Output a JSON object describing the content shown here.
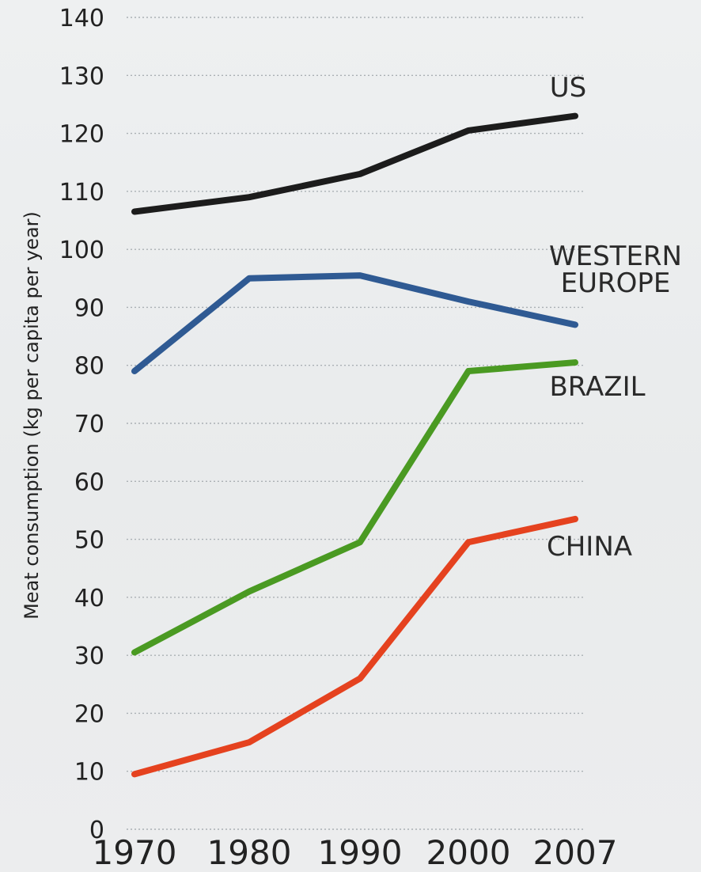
{
  "chart_data": {
    "type": "line",
    "title": "",
    "xlabel": "",
    "ylabel": "Meat consumption (kg per capita per year)",
    "x": [
      1970,
      1980,
      1990,
      2000,
      2007
    ],
    "x_tick_labels": [
      "1970",
      "1980",
      "1990",
      "2000",
      "2007"
    ],
    "y_ticks": [
      0,
      10,
      20,
      30,
      40,
      50,
      60,
      70,
      80,
      90,
      100,
      110,
      120,
      130,
      140
    ],
    "ylim": [
      0,
      140
    ],
    "grid": true,
    "series": [
      {
        "name": "US",
        "label_lines": [
          "US"
        ],
        "color": "#1c1c1c",
        "values": [
          106.5,
          109,
          113,
          120.5,
          123
        ]
      },
      {
        "name": "WESTERN EUROPE",
        "label_lines": [
          "WESTERN",
          "EUROPE"
        ],
        "color": "#2f5a93",
        "values": [
          79,
          95,
          95.5,
          91,
          87
        ]
      },
      {
        "name": "BRAZIL",
        "label_lines": [
          "BRAZIL"
        ],
        "color": "#4a9a22",
        "values": [
          30.5,
          41,
          49.5,
          79,
          80.5
        ]
      },
      {
        "name": "CHINA",
        "label_lines": [
          "CHINA"
        ],
        "color": "#e5421f",
        "values": [
          9.5,
          15,
          26,
          49.5,
          53.5
        ]
      }
    ]
  }
}
